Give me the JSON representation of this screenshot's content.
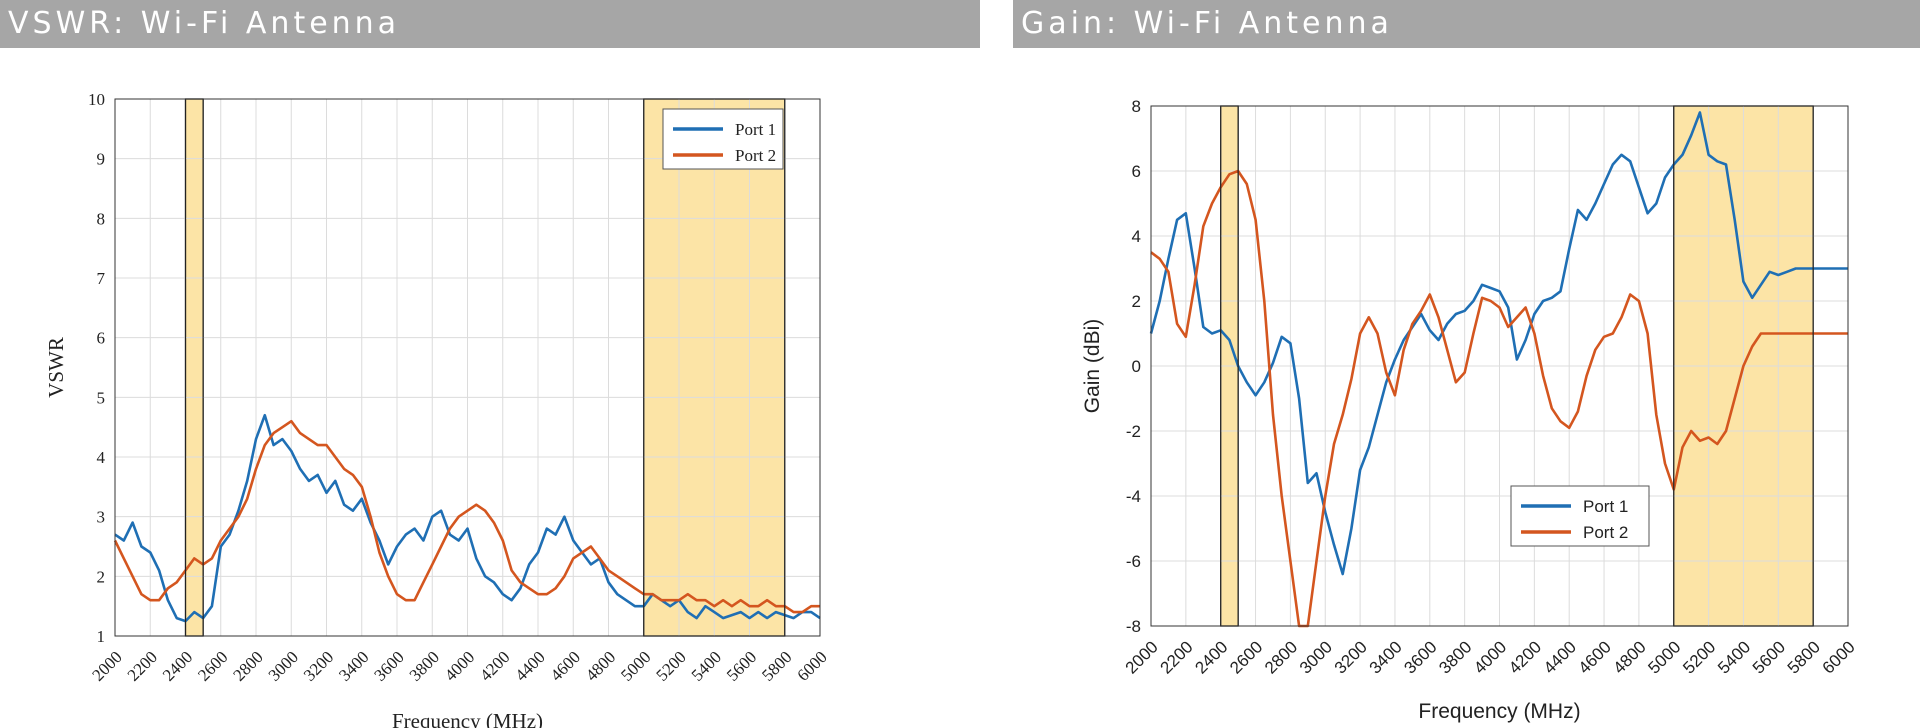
{
  "headers": {
    "left": "VSWR: Wi-Fi Antenna",
    "right": "Gain: Wi-Fi Antenna"
  },
  "colors": {
    "port1": "#1f6fb4",
    "port2": "#d4561f",
    "band_fill": "#fce4a6",
    "header_bg": "#a6a6a6"
  },
  "chart_data": [
    {
      "type": "line",
      "title": "VSWR: Wi-Fi Antenna",
      "xlabel": "Frequency (MHz)",
      "ylabel": "VSWR",
      "xlim": [
        2000,
        6000
      ],
      "ylim": [
        1,
        10
      ],
      "xticks": [
        2000,
        2200,
        2400,
        2600,
        2800,
        3000,
        3200,
        3400,
        3600,
        3800,
        4000,
        4200,
        4400,
        4600,
        4800,
        5000,
        5200,
        5400,
        5600,
        5800,
        6000
      ],
      "yticks": [
        1,
        2,
        3,
        4,
        5,
        6,
        7,
        8,
        9,
        10
      ],
      "grid": true,
      "legend_position": "top-right",
      "highlight_bands": [
        [
          2400,
          2500
        ],
        [
          5000,
          5800
        ]
      ],
      "series": [
        {
          "name": "Port 1",
          "x": [
            2000,
            2050,
            2100,
            2150,
            2200,
            2250,
            2300,
            2350,
            2400,
            2450,
            2500,
            2550,
            2600,
            2650,
            2700,
            2750,
            2800,
            2850,
            2900,
            2950,
            3000,
            3050,
            3100,
            3150,
            3200,
            3250,
            3300,
            3350,
            3400,
            3450,
            3500,
            3550,
            3600,
            3650,
            3700,
            3750,
            3800,
            3850,
            3900,
            3950,
            4000,
            4050,
            4100,
            4150,
            4200,
            4250,
            4300,
            4350,
            4400,
            4450,
            4500,
            4550,
            4600,
            4650,
            4700,
            4750,
            4800,
            4850,
            4900,
            4950,
            5000,
            5050,
            5100,
            5150,
            5200,
            5250,
            5300,
            5350,
            5400,
            5450,
            5500,
            5550,
            5600,
            5650,
            5700,
            5750,
            5800,
            5850,
            5900,
            5950,
            6000
          ],
          "values": [
            2.7,
            2.6,
            2.9,
            2.5,
            2.4,
            2.1,
            1.6,
            1.3,
            1.25,
            1.4,
            1.3,
            1.5,
            2.5,
            2.7,
            3.1,
            3.6,
            4.3,
            4.7,
            4.2,
            4.3,
            4.1,
            3.8,
            3.6,
            3.7,
            3.4,
            3.6,
            3.2,
            3.1,
            3.3,
            2.9,
            2.6,
            2.2,
            2.5,
            2.7,
            2.8,
            2.6,
            3.0,
            3.1,
            2.7,
            2.6,
            2.8,
            2.3,
            2.0,
            1.9,
            1.7,
            1.6,
            1.8,
            2.2,
            2.4,
            2.8,
            2.7,
            3.0,
            2.6,
            2.4,
            2.2,
            2.3,
            1.9,
            1.7,
            1.6,
            1.5,
            1.5,
            1.7,
            1.6,
            1.5,
            1.6,
            1.4,
            1.3,
            1.5,
            1.4,
            1.3,
            1.35,
            1.4,
            1.3,
            1.4,
            1.3,
            1.4,
            1.35,
            1.3,
            1.4,
            1.4,
            1.3
          ]
        },
        {
          "name": "Port 2",
          "x": [
            2000,
            2050,
            2100,
            2150,
            2200,
            2250,
            2300,
            2350,
            2400,
            2450,
            2500,
            2550,
            2600,
            2650,
            2700,
            2750,
            2800,
            2850,
            2900,
            2950,
            3000,
            3050,
            3100,
            3150,
            3200,
            3250,
            3300,
            3350,
            3400,
            3450,
            3500,
            3550,
            3600,
            3650,
            3700,
            3750,
            3800,
            3850,
            3900,
            3950,
            4000,
            4050,
            4100,
            4150,
            4200,
            4250,
            4300,
            4350,
            4400,
            4450,
            4500,
            4550,
            4600,
            4650,
            4700,
            4750,
            4800,
            4850,
            4900,
            4950,
            5000,
            5050,
            5100,
            5150,
            5200,
            5250,
            5300,
            5350,
            5400,
            5450,
            5500,
            5550,
            5600,
            5650,
            5700,
            5750,
            5800,
            5850,
            5900,
            5950,
            6000
          ],
          "values": [
            2.6,
            2.3,
            2.0,
            1.7,
            1.6,
            1.6,
            1.8,
            1.9,
            2.1,
            2.3,
            2.2,
            2.3,
            2.6,
            2.8,
            3.0,
            3.3,
            3.8,
            4.2,
            4.4,
            4.5,
            4.6,
            4.4,
            4.3,
            4.2,
            4.2,
            4.0,
            3.8,
            3.7,
            3.5,
            3.0,
            2.4,
            2.0,
            1.7,
            1.6,
            1.6,
            1.9,
            2.2,
            2.5,
            2.8,
            3.0,
            3.1,
            3.2,
            3.1,
            2.9,
            2.6,
            2.1,
            1.9,
            1.8,
            1.7,
            1.7,
            1.8,
            2.0,
            2.3,
            2.4,
            2.5,
            2.3,
            2.1,
            2.0,
            1.9,
            1.8,
            1.7,
            1.7,
            1.6,
            1.6,
            1.6,
            1.7,
            1.6,
            1.6,
            1.5,
            1.6,
            1.5,
            1.6,
            1.5,
            1.5,
            1.6,
            1.5,
            1.5,
            1.4,
            1.4,
            1.5,
            1.5
          ]
        }
      ]
    },
    {
      "type": "line",
      "title": "Gain: Wi-Fi Antenna",
      "xlabel": "Frequency (MHz)",
      "ylabel": "Gain (dBi)",
      "xlim": [
        2000,
        6000
      ],
      "ylim": [
        -8,
        8
      ],
      "xticks": [
        2000,
        2200,
        2400,
        2600,
        2800,
        3000,
        3200,
        3400,
        3600,
        3800,
        4000,
        4200,
        4400,
        4600,
        4800,
        5000,
        5200,
        5400,
        5600,
        5800,
        6000
      ],
      "yticks": [
        -8,
        -6,
        -4,
        -2,
        0,
        2,
        4,
        6,
        8
      ],
      "grid": true,
      "legend_position": "bottom-center",
      "highlight_bands": [
        [
          2400,
          2500
        ],
        [
          5000,
          5800
        ]
      ],
      "series": [
        {
          "name": "Port 1",
          "x": [
            2000,
            2050,
            2100,
            2150,
            2200,
            2250,
            2300,
            2350,
            2400,
            2450,
            2500,
            2550,
            2600,
            2650,
            2700,
            2750,
            2800,
            2850,
            2900,
            2950,
            3000,
            3050,
            3100,
            3150,
            3200,
            3250,
            3300,
            3350,
            3400,
            3450,
            3500,
            3550,
            3600,
            3650,
            3700,
            3750,
            3800,
            3850,
            3900,
            3950,
            4000,
            4050,
            4100,
            4150,
            4200,
            4250,
            4300,
            4350,
            4400,
            4450,
            4500,
            4550,
            4600,
            4650,
            4700,
            4750,
            4800,
            4850,
            4900,
            4950,
            5000,
            5050,
            5100,
            5150,
            5200,
            5250,
            5300,
            5350,
            5400,
            5450,
            5500,
            5550,
            5600,
            5650,
            5700,
            5750,
            5800,
            5850,
            5900,
            5950,
            6000
          ],
          "values": [
            1.0,
            2.0,
            3.3,
            4.5,
            4.7,
            3.0,
            1.2,
            1.0,
            1.1,
            0.8,
            0.0,
            -0.5,
            -0.9,
            -0.5,
            0.1,
            0.9,
            0.7,
            -1.0,
            -3.6,
            -3.3,
            -4.5,
            -5.5,
            -6.4,
            -5.0,
            -3.2,
            -2.5,
            -1.5,
            -0.5,
            0.2,
            0.8,
            1.2,
            1.6,
            1.1,
            0.8,
            1.3,
            1.6,
            1.7,
            2.0,
            2.5,
            2.4,
            2.3,
            1.8,
            0.2,
            0.8,
            1.6,
            2.0,
            2.1,
            2.3,
            3.6,
            4.8,
            4.5,
            5.0,
            5.6,
            6.2,
            6.5,
            6.3,
            5.5,
            4.7,
            5.0,
            5.8,
            6.2,
            6.5,
            7.1,
            7.8,
            6.5,
            6.3,
            6.2,
            4.5,
            2.6,
            2.1,
            2.5,
            2.9,
            2.8,
            2.9,
            3.0,
            3.0,
            3.0,
            3.0,
            3.0,
            3.0,
            3.0
          ]
        },
        {
          "name": "Port 2",
          "x": [
            2000,
            2050,
            2100,
            2150,
            2200,
            2250,
            2300,
            2350,
            2400,
            2450,
            2500,
            2550,
            2600,
            2650,
            2700,
            2750,
            2800,
            2850,
            2900,
            2950,
            3000,
            3050,
            3100,
            3150,
            3200,
            3250,
            3300,
            3350,
            3400,
            3450,
            3500,
            3550,
            3600,
            3650,
            3700,
            3750,
            3800,
            3850,
            3900,
            3950,
            4000,
            4050,
            4100,
            4150,
            4200,
            4250,
            4300,
            4350,
            4400,
            4450,
            4500,
            4550,
            4600,
            4650,
            4700,
            4750,
            4800,
            4850,
            4900,
            4950,
            5000,
            5050,
            5100,
            5150,
            5200,
            5250,
            5300,
            5350,
            5400,
            5450,
            5500,
            5550,
            5600,
            5650,
            5700,
            5750,
            5800,
            5850,
            5900,
            5950,
            6000
          ],
          "values": [
            3.5,
            3.3,
            2.9,
            1.3,
            0.9,
            2.5,
            4.3,
            5.0,
            5.5,
            5.9,
            6.0,
            5.6,
            4.5,
            2.0,
            -1.5,
            -4.0,
            -6.0,
            -8.0,
            -8.0,
            -6.0,
            -4.0,
            -2.4,
            -1.5,
            -0.4,
            1.0,
            1.5,
            1.0,
            -0.2,
            -0.9,
            0.5,
            1.3,
            1.7,
            2.2,
            1.5,
            0.5,
            -0.5,
            -0.2,
            1.0,
            2.1,
            2.0,
            1.8,
            1.2,
            1.5,
            1.8,
            1.0,
            -0.3,
            -1.3,
            -1.7,
            -1.9,
            -1.4,
            -0.3,
            0.5,
            0.9,
            1.0,
            1.5,
            2.2,
            2.0,
            1.0,
            -1.5,
            -3.0,
            -3.8,
            -2.5,
            -2.0,
            -2.3,
            -2.2,
            -2.4,
            -2.0,
            -1.0,
            0.0,
            0.6,
            1.0,
            1.0,
            1.0,
            1.0,
            1.0,
            1.0,
            1.0,
            1.0,
            1.0,
            1.0,
            1.0
          ]
        }
      ]
    }
  ]
}
